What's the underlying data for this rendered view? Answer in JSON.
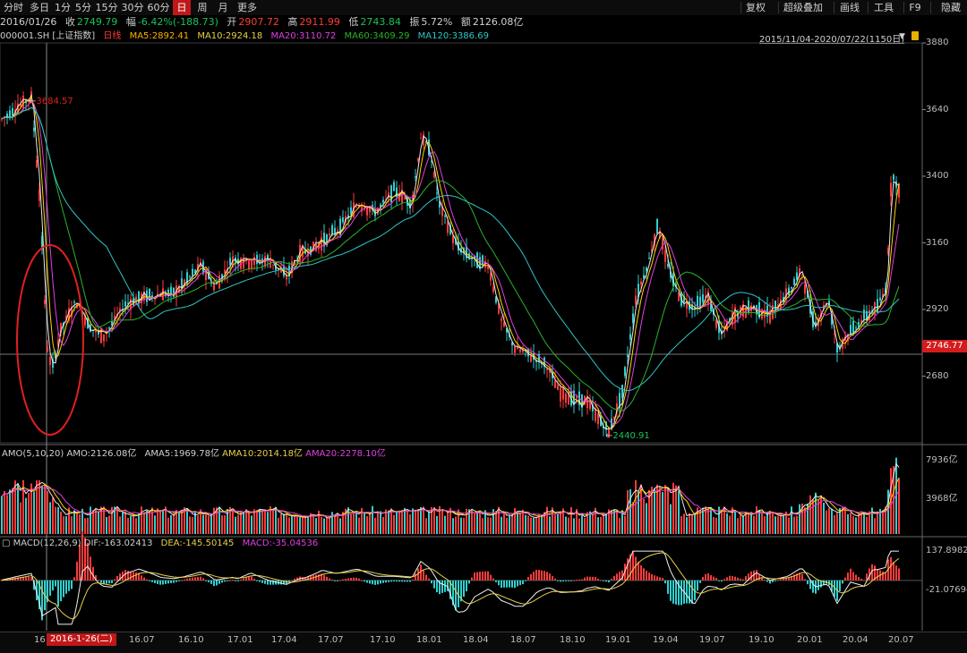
{
  "toolbar": {
    "left_items": [
      "分时",
      "多日",
      "1分",
      "5分",
      "15分",
      "30分",
      "60分",
      "日",
      "周",
      "月",
      "更多"
    ],
    "active": "日",
    "right_items": [
      "复权",
      "超级叠加",
      "画线",
      "工具",
      "F9",
      "隐藏"
    ]
  },
  "infobar": {
    "date": "2016/01/26",
    "close_label": "收",
    "close": "2749.79",
    "change_label": "幅",
    "change": "-6.42%(-188.73)",
    "open_label": "开",
    "open": "2907.72",
    "high_label": "高",
    "high": "2911.99",
    "low_label": "低",
    "low": "2743.84",
    "amp_label": "振",
    "amp": "5.72%",
    "amount_label": "额",
    "amount": "2126.08亿"
  },
  "legend": {
    "symbol": "000001.SH [上证指数]",
    "period": "日线",
    "ma5": "MA5:2892.41",
    "ma10": "MA10:2924.18",
    "ma20": "MA20:3110.72",
    "ma60": "MA60:3409.29",
    "ma120": "MA120:3386.69",
    "range": "2015/11/04-2020/07/22(1150日)"
  },
  "colors": {
    "up": "#ff3b3b",
    "down": "#2fd0d0",
    "ma5": "#e8e8e8",
    "ma10": "#ffd400",
    "ma20": "#e040e0",
    "ma60": "#2bb32b",
    "ma120": "#2fc6c6",
    "annotation": "#e02020"
  },
  "chart_data": [
    {
      "type": "candlestick",
      "title": "000001.SH [上证指数]",
      "y_ticks": [
        3880,
        3640,
        3400,
        3160,
        2920,
        2680
      ],
      "ylim": [
        2440,
        3880
      ],
      "current_price_label": "2746.77",
      "high_annotation": "3684.57",
      "low_annotation": "2440.91",
      "series": [
        {
          "name": "price",
          "x": [
            "15.11",
            "16.01",
            "16.02",
            "16.04",
            "16.07",
            "16.10",
            "17.01",
            "17.04",
            "17.07",
            "17.10",
            "18.01",
            "18.04",
            "18.07",
            "18.10",
            "19.01",
            "19.04",
            "19.07",
            "19.10",
            "20.01",
            "20.04",
            "20.07"
          ],
          "values": [
            3580,
            2750,
            2850,
            2980,
            3050,
            3100,
            3170,
            3280,
            3200,
            3380,
            3520,
            3170,
            2820,
            2650,
            2500,
            3250,
            2880,
            2980,
            3050,
            2760,
            3450
          ]
        }
      ]
    },
    {
      "type": "bar",
      "title": "AMO(5,10,20)",
      "labels": {
        "amo": "AMO:2126.08亿",
        "ama5": "AMA5:1969.78亿",
        "ama10": "AMA10:2014.18亿",
        "ama20": "AMA20:2278.10亿"
      },
      "y_ticks": [
        "7936亿",
        "3968亿"
      ],
      "ylim": [
        0,
        7936
      ]
    },
    {
      "type": "bar",
      "title": "MACD(12,26,9)",
      "labels": {
        "dif": "DIF:-163.02413",
        "dea": "DEA:-145.50145",
        "macd": "MACD:-35.04536"
      },
      "y_ticks": [
        "137.89822",
        "-21.07694"
      ],
      "ylim": [
        -260,
        180
      ]
    }
  ],
  "x_axis": {
    "labels": [
      "16",
      "16.07",
      "16.10",
      "17.01",
      "17.04",
      "17.07",
      "17.10",
      "18.01",
      "18.04",
      "18.07",
      "18.10",
      "19.01",
      "19.04",
      "19.07",
      "19.10",
      "20.01",
      "20.04",
      "20.07"
    ],
    "cursor_label": "2016-1-26(二)"
  }
}
